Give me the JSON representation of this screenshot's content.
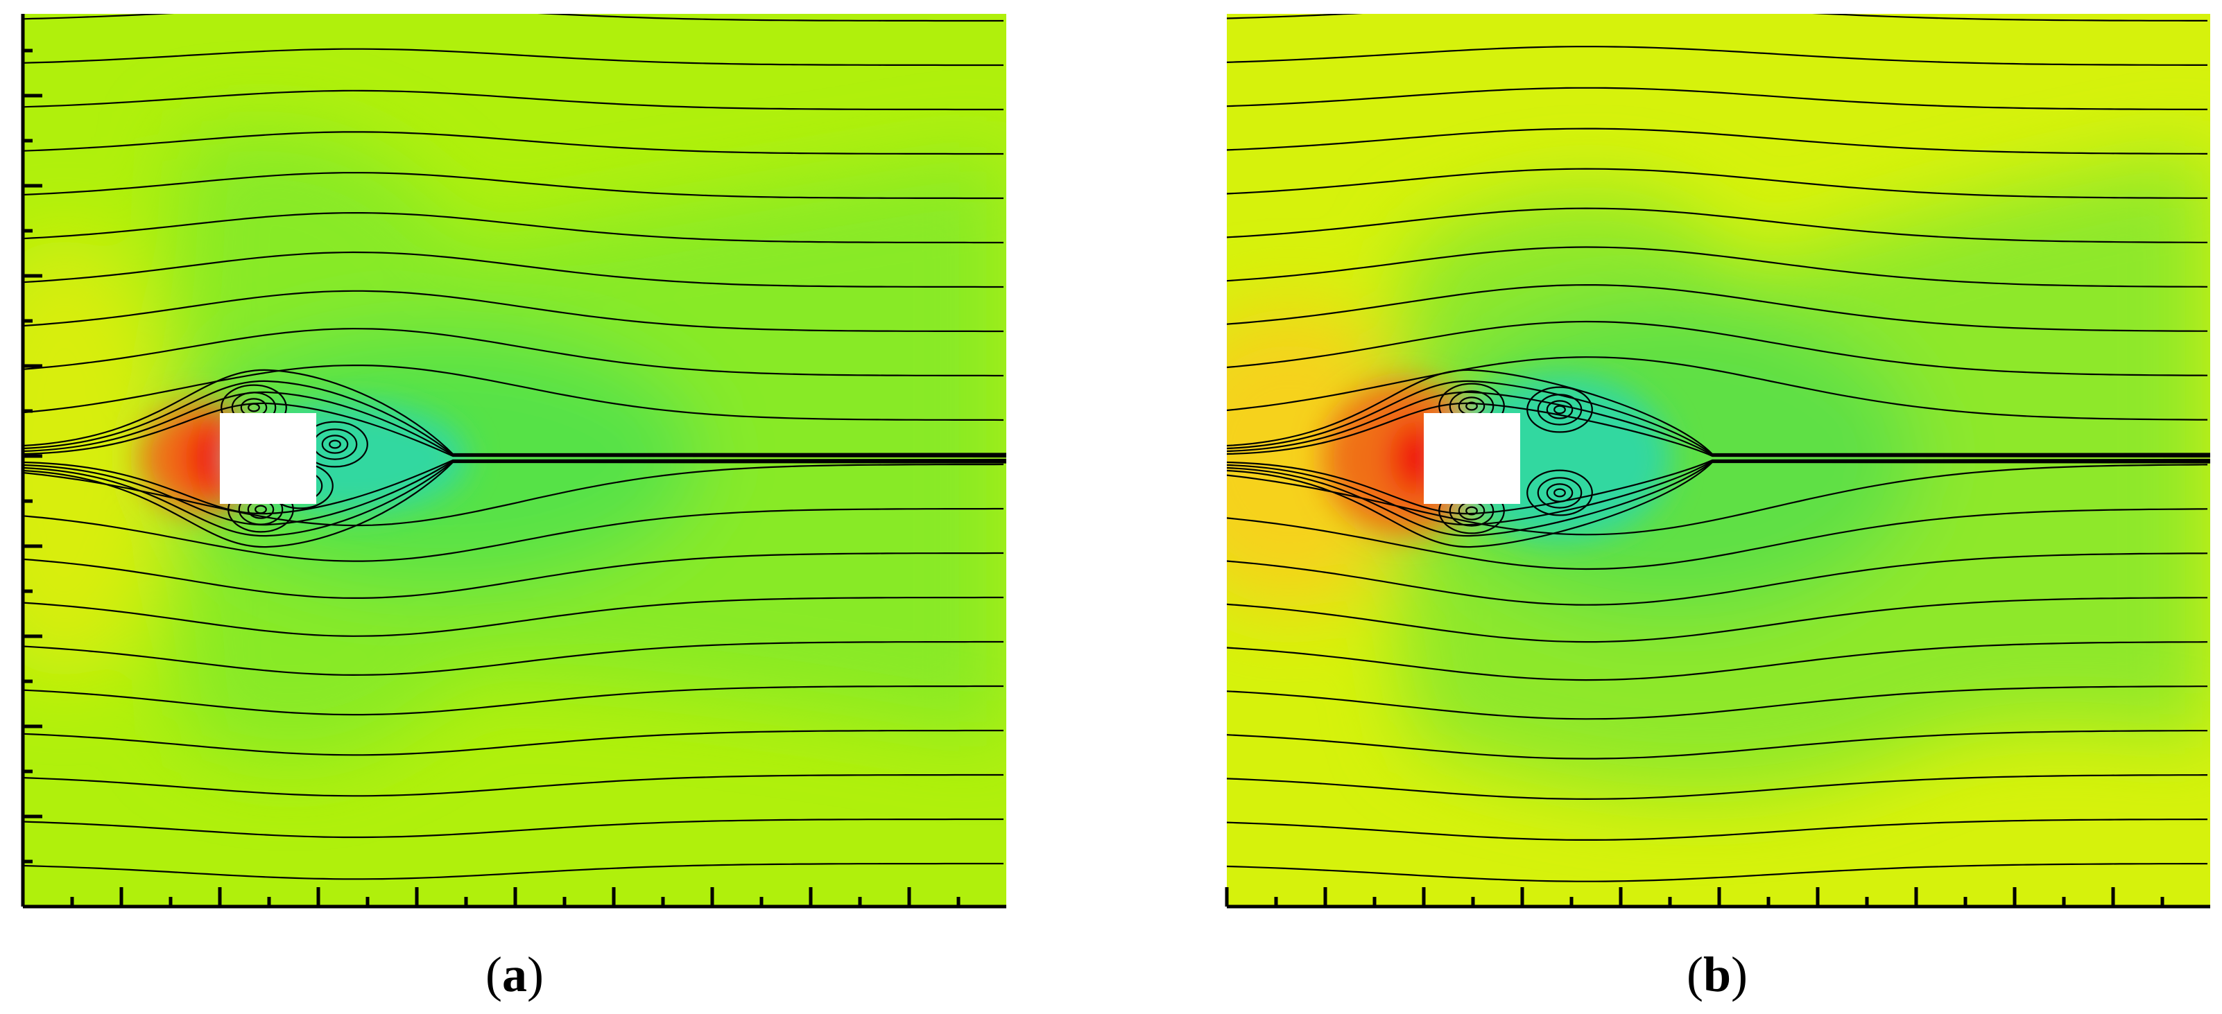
{
  "panels": [
    {
      "prefix": "(",
      "letter": "a",
      "suffix": ")"
    },
    {
      "prefix": "(",
      "letter": "b",
      "suffix": ")"
    }
  ]
}
